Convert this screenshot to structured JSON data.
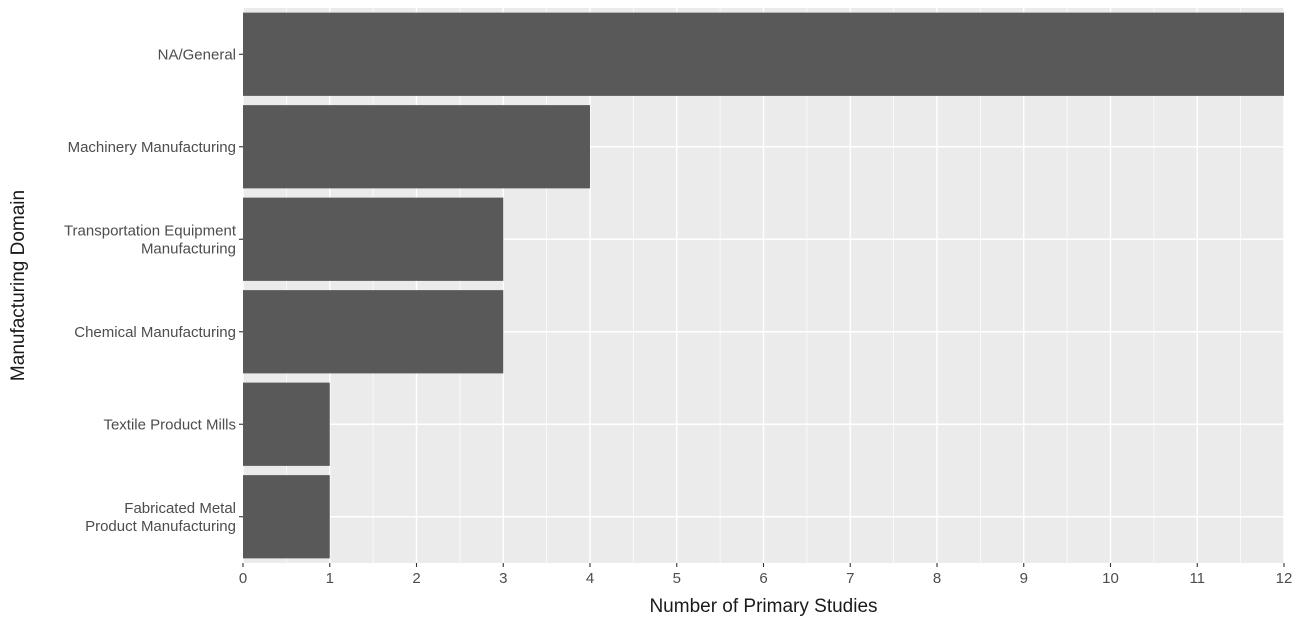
{
  "chart_data": {
    "type": "bar",
    "orientation": "horizontal",
    "categories": [
      [
        "NA/General"
      ],
      [
        "Machinery Manufacturing"
      ],
      [
        "Transportation Equipment",
        "Manufacturing"
      ],
      [
        "Chemical Manufacturing"
      ],
      [
        "Textile Product Mills"
      ],
      [
        "Fabricated Metal",
        "Product Manufacturing"
      ]
    ],
    "values": [
      12,
      4,
      3,
      3,
      1,
      1
    ],
    "xlabel": "Number of Primary Studies",
    "ylabel": "Manufacturing Domain",
    "xlim": [
      0,
      12
    ],
    "xticks": [
      "0",
      "1",
      "2",
      "3",
      "4",
      "5",
      "6",
      "7",
      "8",
      "9",
      "10",
      "11",
      "12"
    ],
    "grid": true,
    "colors": {
      "panel": "#ebebeb",
      "grid_major": "#ffffff",
      "bar": "#595959",
      "tick": "#333333"
    }
  }
}
